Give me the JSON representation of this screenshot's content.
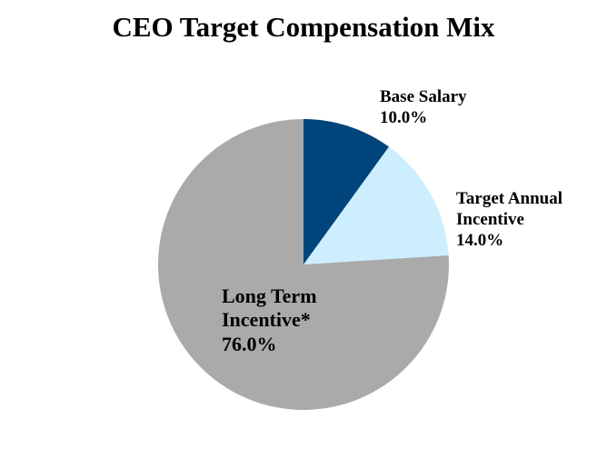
{
  "chart_data": {
    "type": "pie",
    "title": "CEO Target Compensation Mix",
    "slices": [
      {
        "label_lines": [
          "Base Salary"
        ],
        "value": 10.0,
        "value_label": "10.0%",
        "color": "#00457c"
      },
      {
        "label_lines": [
          "Target Annual",
          "Incentive"
        ],
        "value": 14.0,
        "value_label": "14.0%",
        "color": "#cceeff"
      },
      {
        "label_lines": [
          "Long Term",
          "Incentive*"
        ],
        "value": 76.0,
        "value_label": "76.0%",
        "color": "#aaaaaa"
      }
    ],
    "start_angle_deg": 0,
    "direction": "clockwise",
    "legend": "none"
  }
}
